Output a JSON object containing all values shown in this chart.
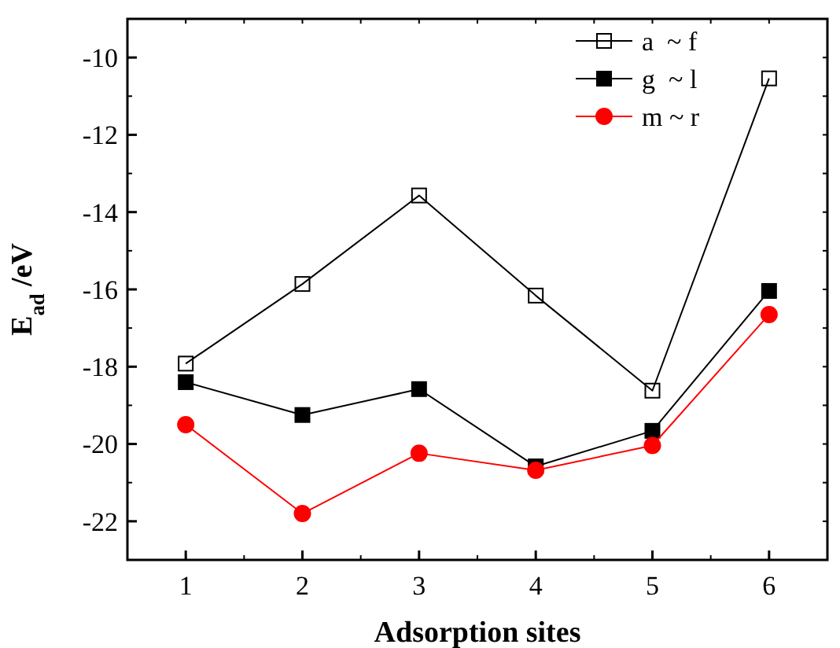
{
  "chart_data": {
    "type": "line",
    "xlabel": "Adsorption sites",
    "ylabel": "E$_{ad}$/eV",
    "x": [
      1,
      2,
      3,
      4,
      5,
      6
    ],
    "series": [
      {
        "name": "a  ~ f",
        "color": "#000000",
        "marker": "square-open",
        "values": [
          -17.92,
          -15.86,
          -13.57,
          -16.16,
          -18.62,
          -10.54
        ]
      },
      {
        "name": "g  ~ l",
        "color": "#000000",
        "marker": "square",
        "values": [
          -18.4,
          -19.25,
          -18.58,
          -20.58,
          -19.66,
          -16.04
        ]
      },
      {
        "name": "m ~ r",
        "color": "#ff0000",
        "marker": "circle",
        "values": [
          -19.5,
          -21.8,
          -20.24,
          -20.68,
          -20.04,
          -16.65
        ]
      }
    ],
    "xlim": [
      0.5,
      6.5
    ],
    "xticks": [
      1,
      2,
      3,
      4,
      5,
      6
    ],
    "ylim": [
      -23,
      -9
    ],
    "yticks": [
      -22,
      -20,
      -18,
      -16,
      -14,
      -12,
      -10
    ],
    "legend": "top right",
    "grid": false,
    "line_style": "solid"
  }
}
